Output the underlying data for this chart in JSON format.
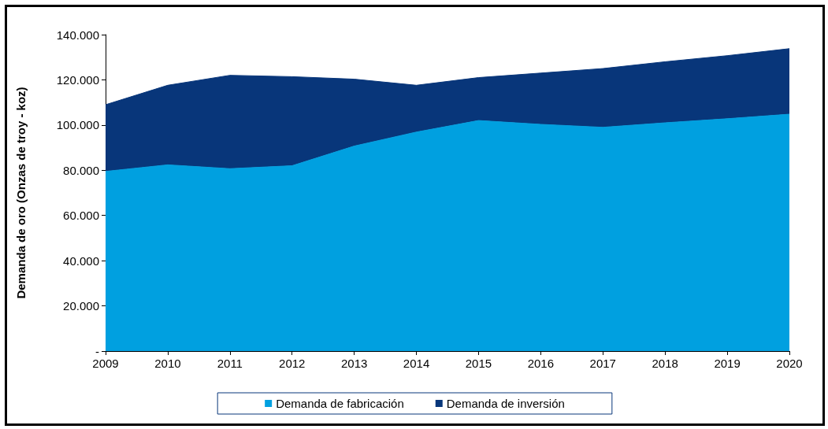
{
  "chart_data": {
    "type": "area",
    "stacked": true,
    "ylabel": "Demanda de oro (Onzas de troy - koz)",
    "categories": [
      "2009",
      "2010",
      "2011",
      "2012",
      "2013",
      "2014",
      "2015",
      "2016",
      "2017",
      "2018",
      "2019",
      "2020"
    ],
    "series": [
      {
        "name": "Demanda de fabricación",
        "color": "#00a0e0",
        "values": [
          79500,
          82400,
          80700,
          82000,
          90700,
          96900,
          102000,
          100300,
          99000,
          101000,
          102800,
          104800
        ]
      },
      {
        "name": "Demanda de inversión",
        "color": "#08367a",
        "values": [
          29500,
          35200,
          41300,
          39400,
          29600,
          20700,
          19000,
          22700,
          26000,
          27000,
          27900,
          29000
        ]
      }
    ],
    "ylim": [
      0,
      140000
    ],
    "yticks": [
      {
        "value": 0,
        "label": "-"
      },
      {
        "value": 20000,
        "label": "20.000"
      },
      {
        "value": 40000,
        "label": "40.000"
      },
      {
        "value": 60000,
        "label": "60.000"
      },
      {
        "value": 80000,
        "label": "80.000"
      },
      {
        "value": 100000,
        "label": "100.000"
      },
      {
        "value": 120000,
        "label": "120.000"
      },
      {
        "value": 140000,
        "label": "140.000"
      }
    ],
    "grid": false,
    "legend": "bottom"
  }
}
